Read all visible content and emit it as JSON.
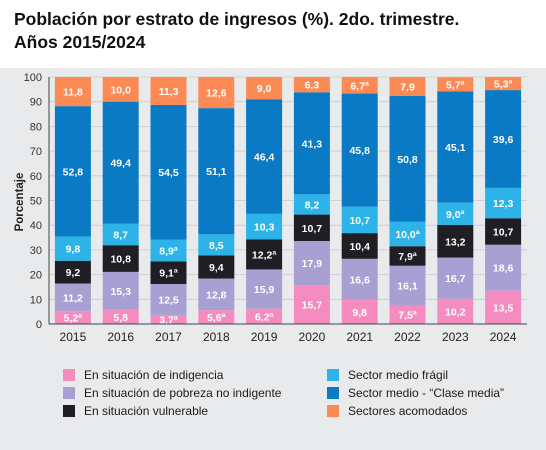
{
  "chart_data": {
    "type": "bar",
    "stacked": true,
    "title_line1": "Población por estrato de ingresos (%). 2do. trimestre.",
    "title_line2": "Años 2015/2024",
    "ylabel": "Porcentaje",
    "ylim": [
      0,
      100
    ],
    "yticks": [
      "0",
      "10",
      "20",
      "30",
      "40",
      "50",
      "60",
      "70",
      "80",
      "90",
      "100"
    ],
    "grid": true,
    "legend_position": "bottom",
    "categories": [
      "2015",
      "2016",
      "2017",
      "2018",
      "2019",
      "2020",
      "2021",
      "2022",
      "2023",
      "2024"
    ],
    "series": [
      {
        "name": "En situación de indigencia",
        "color": "#f48cbf",
        "values": [
          5.2,
          5.8,
          3.7,
          5.6,
          6.2,
          15.7,
          9.8,
          7.5,
          10.2,
          13.5
        ],
        "labels": [
          "5,2ª",
          "5,8",
          "3,7ª",
          "5,6ª",
          "6,2ª",
          "15,7",
          "9,8",
          "7,5ª",
          "10,2",
          "13,5"
        ]
      },
      {
        "name": "En situación de pobreza no indigente",
        "color": "#a89fd2",
        "values": [
          11.2,
          15.3,
          12.5,
          12.8,
          15.9,
          17.9,
          16.6,
          16.1,
          16.7,
          18.6
        ],
        "labels": [
          "11,2",
          "15,3",
          "12,5",
          "12,8",
          "15,9",
          "17,9",
          "16,6",
          "16,1",
          "16,7",
          "18,6"
        ]
      },
      {
        "name": "En situación vulnerable",
        "color": "#1e1e24",
        "values": [
          9.2,
          10.8,
          9.1,
          9.4,
          12.2,
          10.7,
          10.4,
          7.9,
          13.2,
          10.7
        ],
        "labels": [
          "9,2",
          "10,8",
          "9,1ª",
          "9,4",
          "12,2ª",
          "10,7",
          "10,4",
          "7,9ª",
          "13,2",
          "10,7"
        ]
      },
      {
        "name": "Sector medio frágil",
        "color": "#2eb3e8",
        "values": [
          9.8,
          8.7,
          8.9,
          8.5,
          10.3,
          8.2,
          10.7,
          10.0,
          9.0,
          12.3
        ],
        "labels": [
          "9,8",
          "8,7",
          "8,9ª",
          "8,5",
          "10,3",
          "8,2",
          "10,7",
          "10,0ª",
          "9,0ª",
          "12,3"
        ]
      },
      {
        "name": "Sector medio - “Clase media”",
        "color": "#0a7ac4",
        "values": [
          52.8,
          49.4,
          54.5,
          51.1,
          46.4,
          41.3,
          45.8,
          50.8,
          45.1,
          39.6
        ],
        "labels": [
          "52,8",
          "49,4",
          "54,5",
          "51,1",
          "46,4",
          "41,3",
          "45,8",
          "50,8",
          "45,1",
          "39,6"
        ]
      },
      {
        "name": "Sectores acomodados",
        "color": "#fb8a55",
        "values": [
          11.8,
          10.0,
          11.3,
          12.6,
          9.0,
          6.3,
          6.7,
          7.9,
          5.7,
          5.3
        ],
        "labels": [
          "11,8",
          "10,0",
          "11,3",
          "12,6",
          "9,0",
          "6,3",
          "6,7ª",
          "7,9",
          "5,7ª",
          "5,3ª"
        ]
      }
    ]
  }
}
